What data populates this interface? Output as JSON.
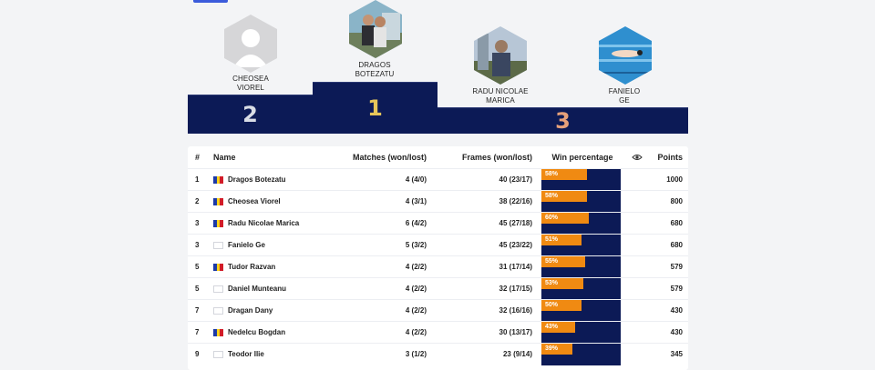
{
  "podium": [
    {
      "rank": "2",
      "first": "CHEOSEA",
      "last": "VIOREL",
      "photo": "silhouette"
    },
    {
      "rank": "1",
      "first": "DRAGOS",
      "last": "BOTEZATU",
      "photo": "photo-person"
    },
    {
      "rank": "3",
      "first": "RADU NICOLAE",
      "last": "MARICA",
      "photo": "photo-person"
    },
    {
      "rank": "3",
      "first": "FANIELO",
      "last": "GE",
      "photo": "photo-pool"
    }
  ],
  "table": {
    "headers": {
      "rank": "#",
      "name": "Name",
      "matches": "Matches (won/lost)",
      "frames": "Frames (won/lost)",
      "win": "Win percentage",
      "eye_icon": "eye-icon",
      "points": "Points"
    },
    "rows": [
      {
        "rank": "1",
        "flag": "ro",
        "name": "Dragos Botezatu",
        "matches": "4 (4/0)",
        "frames": "40 (23/17)",
        "win": "58%",
        "win_value": 58,
        "points": "1000"
      },
      {
        "rank": "2",
        "flag": "ro",
        "name": "Cheosea Viorel",
        "matches": "4 (3/1)",
        "frames": "38 (22/16)",
        "win": "58%",
        "win_value": 58,
        "points": "800"
      },
      {
        "rank": "3",
        "flag": "ro",
        "name": "Radu Nicolae Marica",
        "matches": "6 (4/2)",
        "frames": "45 (27/18)",
        "win": "60%",
        "win_value": 60,
        "points": "680"
      },
      {
        "rank": "3",
        "flag": "none",
        "name": "Fanielo Ge",
        "matches": "5 (3/2)",
        "frames": "45 (23/22)",
        "win": "51%",
        "win_value": 51,
        "points": "680"
      },
      {
        "rank": "5",
        "flag": "ro",
        "name": "Tudor Razvan",
        "matches": "4 (2/2)",
        "frames": "31 (17/14)",
        "win": "55%",
        "win_value": 55,
        "points": "579"
      },
      {
        "rank": "5",
        "flag": "none",
        "name": "Daniel Munteanu",
        "matches": "4 (2/2)",
        "frames": "32 (17/15)",
        "win": "53%",
        "win_value": 53,
        "points": "579"
      },
      {
        "rank": "7",
        "flag": "none",
        "name": "Dragan Dany",
        "matches": "4 (2/2)",
        "frames": "32 (16/16)",
        "win": "50%",
        "win_value": 50,
        "points": "430"
      },
      {
        "rank": "7",
        "flag": "ro",
        "name": "Nedelcu Bogdan",
        "matches": "4 (2/2)",
        "frames": "30 (13/17)",
        "win": "43%",
        "win_value": 43,
        "points": "430"
      },
      {
        "rank": "9",
        "flag": "none",
        "name": "Teodor Ilie",
        "matches": "3 (1/2)",
        "frames": "23 (9/14)",
        "win": "39%",
        "win_value": 39,
        "points": "345"
      }
    ]
  },
  "colors": {
    "navy": "#0c1a56",
    "orange": "#f08a12",
    "gold": "#e7c65a",
    "silver": "#d9dde6",
    "bronze": "#e6a07a"
  }
}
